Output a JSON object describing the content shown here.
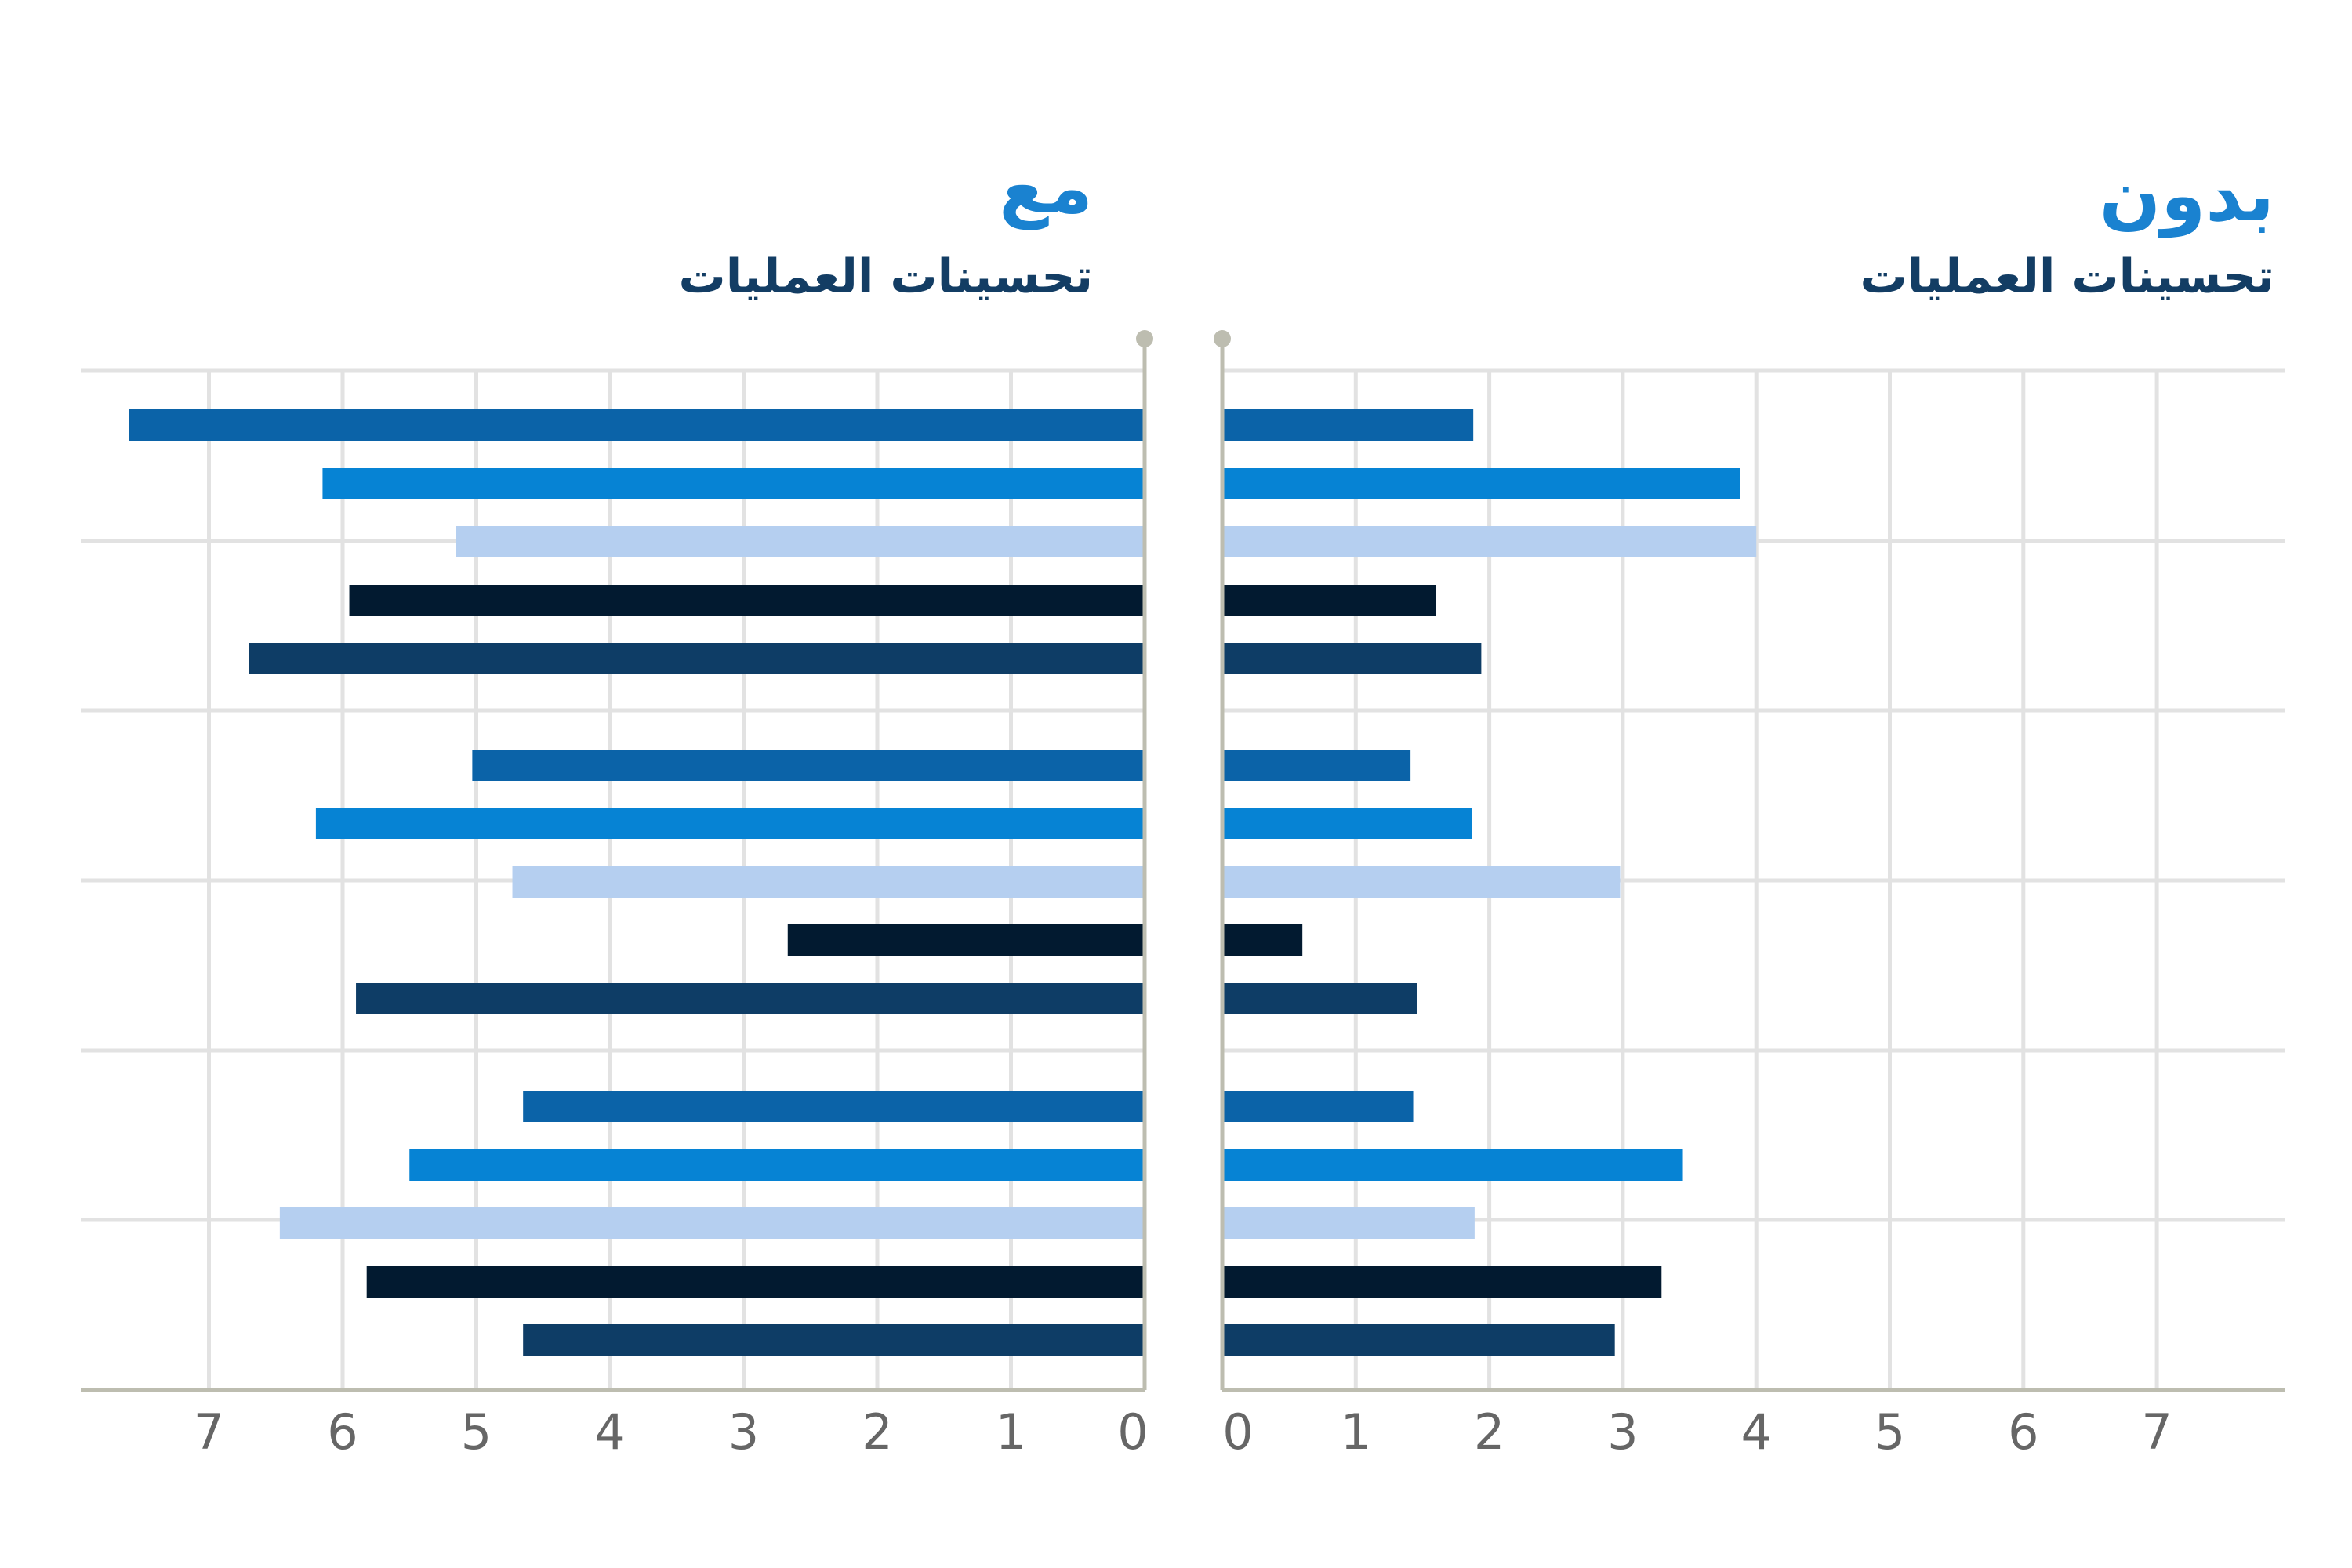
{
  "headers": {
    "left": {
      "main": "مع",
      "sub": "تحسينات العمليات"
    },
    "right": {
      "main": "بدون",
      "sub": "تحسينات العمليات"
    }
  },
  "colors": {
    "heading_main": "#1a82d0",
    "heading_sub": "#133d64",
    "grid": "#e2e2e2",
    "axis": "#bdbdb0",
    "tick": "#666666",
    "series": [
      "#0b63a8",
      "#0683d4",
      "#b5cff0",
      "#021a30",
      "#0e3d66"
    ]
  },
  "chart_data": [
    {
      "type": "bar",
      "orientation": "horizontal",
      "direction": "leftward",
      "xlim": [
        0,
        7.7
      ],
      "ticks": [
        0,
        1,
        2,
        3,
        4,
        5,
        6,
        7
      ],
      "groups": [
        {
          "values": [
            7.6,
            6.15,
            5.15,
            5.95,
            6.7
          ]
        },
        {
          "values": [
            5.03,
            6.2,
            4.73,
            2.67,
            5.9
          ]
        },
        {
          "values": [
            4.65,
            5.5,
            6.47,
            5.82,
            4.65
          ]
        }
      ]
    },
    {
      "type": "bar",
      "orientation": "horizontal",
      "direction": "rightward",
      "xlim": [
        0,
        7.7
      ],
      "ticks": [
        0,
        1,
        2,
        3,
        4,
        5,
        6,
        7
      ],
      "groups": [
        {
          "values": [
            1.88,
            3.88,
            4.0,
            1.6,
            1.94
          ]
        },
        {
          "values": [
            1.41,
            1.87,
            2.98,
            0.6,
            1.46
          ]
        },
        {
          "values": [
            1.43,
            3.45,
            1.89,
            3.29,
            2.94
          ]
        }
      ]
    }
  ]
}
